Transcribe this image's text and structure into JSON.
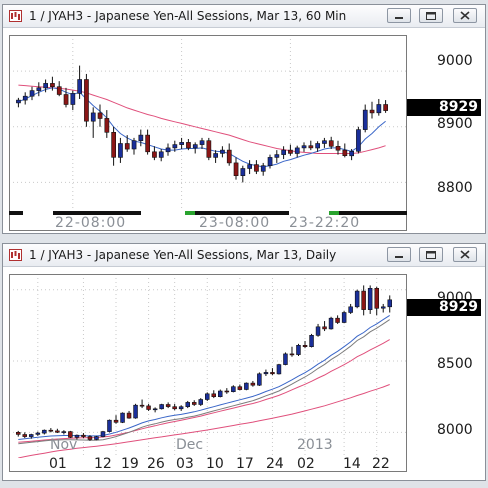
{
  "colors": {
    "up": "#1a2f9a",
    "down": "#8a1616",
    "fast_ma": "#3a66c8",
    "slow_ma": "#e0507c",
    "daily_ma": "#7c7c7c",
    "session_active": "#111111",
    "session_open": "#29a32e"
  },
  "icons": {
    "app": "chart-window-icon",
    "minimize": "minimize-icon",
    "restore": "restore-icon",
    "close": "close-icon"
  },
  "windows": [
    {
      "id": "hourly",
      "title": "1 / JYAH3 - Japanese Yen-All Sessions, Mar 13, 60 Min",
      "last_price": "8929",
      "price_axis": {
        "labels": [
          "9000",
          "8900",
          "8800"
        ],
        "min": 8745,
        "max": 9065
      },
      "date_axis": [
        "22-08:00",
        "23-08:00",
        "23-22:20"
      ],
      "chart_data": {
        "type": "candlestick",
        "ylim": [
          8745,
          9065
        ],
        "candles": [
          [
            8943,
            8952,
            8935,
            8948
          ],
          [
            8948,
            8962,
            8940,
            8955
          ],
          [
            8955,
            8972,
            8948,
            8965
          ],
          [
            8965,
            8980,
            8955,
            8970
          ],
          [
            8970,
            8985,
            8962,
            8978
          ],
          [
            8978,
            8990,
            8965,
            8972
          ],
          [
            8972,
            8982,
            8955,
            8958
          ],
          [
            8958,
            8970,
            8935,
            8940
          ],
          [
            8940,
            8965,
            8930,
            8960
          ],
          [
            8960,
            9010,
            8950,
            8985
          ],
          [
            8985,
            8995,
            8900,
            8910
          ],
          [
            8910,
            8935,
            8880,
            8925
          ],
          [
            8925,
            8940,
            8900,
            8915
          ],
          [
            8915,
            8930,
            8880,
            8890
          ],
          [
            8890,
            8900,
            8830,
            8845
          ],
          [
            8845,
            8880,
            8835,
            8870
          ],
          [
            8870,
            8885,
            8855,
            8860
          ],
          [
            8860,
            8880,
            8850,
            8875
          ],
          [
            8875,
            8895,
            8865,
            8885
          ],
          [
            8885,
            8895,
            8850,
            8855
          ],
          [
            8855,
            8865,
            8840,
            8845
          ],
          [
            8845,
            8860,
            8838,
            8855
          ],
          [
            8855,
            8870,
            8848,
            8862
          ],
          [
            8862,
            8875,
            8855,
            8868
          ],
          [
            8868,
            8880,
            8860,
            8872
          ],
          [
            8872,
            8878,
            8858,
            8862
          ],
          [
            8862,
            8872,
            8852,
            8868
          ],
          [
            8868,
            8880,
            8860,
            8875
          ],
          [
            8875,
            8880,
            8840,
            8845
          ],
          [
            8845,
            8858,
            8835,
            8852
          ],
          [
            8852,
            8865,
            8845,
            8858
          ],
          [
            8858,
            8870,
            8830,
            8835
          ],
          [
            8835,
            8845,
            8805,
            8812
          ],
          [
            8812,
            8830,
            8800,
            8825
          ],
          [
            8825,
            8840,
            8815,
            8832
          ],
          [
            8832,
            8840,
            8815,
            8820
          ],
          [
            8820,
            8835,
            8812,
            8830
          ],
          [
            8830,
            8850,
            8825,
            8845
          ],
          [
            8845,
            8858,
            8835,
            8850
          ],
          [
            8850,
            8865,
            8842,
            8858
          ],
          [
            8858,
            8868,
            8848,
            8852
          ],
          [
            8852,
            8866,
            8845,
            8862
          ],
          [
            8862,
            8872,
            8855,
            8866
          ],
          [
            8866,
            8875,
            8858,
            8862
          ],
          [
            8862,
            8874,
            8855,
            8870
          ],
          [
            8870,
            8880,
            8862,
            8875
          ],
          [
            8875,
            8882,
            8860,
            8865
          ],
          [
            8865,
            8875,
            8850,
            8858
          ],
          [
            8858,
            8870,
            8845,
            8848
          ],
          [
            8848,
            8860,
            8840,
            8856
          ],
          [
            8856,
            8900,
            8852,
            8895
          ],
          [
            8895,
            8940,
            8890,
            8930
          ],
          [
            8930,
            8945,
            8915,
            8925
          ],
          [
            8925,
            8950,
            8920,
            8940
          ],
          [
            8940,
            8948,
            8925,
            8929
          ]
        ],
        "fast_ma": [
          8945,
          8950,
          8956,
          8962,
          8967,
          8970,
          8968,
          8962,
          8958,
          8962,
          8950,
          8938,
          8928,
          8916,
          8900,
          8888,
          8880,
          8874,
          8872,
          8868,
          8864,
          8860,
          8858,
          8858,
          8860,
          8861,
          8861,
          8862,
          8859,
          8856,
          8855,
          8852,
          8845,
          8838,
          8833,
          8830,
          8828,
          8830,
          8833,
          8838,
          8841,
          8845,
          8849,
          8852,
          8856,
          8860,
          8862,
          8862,
          8859,
          8856,
          8864,
          8878,
          8888,
          8900,
          8910
        ],
        "slow_ma": [
          8975,
          8974,
          8973,
          8972,
          8971,
          8970,
          8969,
          8968,
          8966,
          8964,
          8961,
          8957,
          8953,
          8949,
          8944,
          8939,
          8934,
          8930,
          8926,
          8922,
          8919,
          8915,
          8912,
          8909,
          8906,
          8903,
          8900,
          8897,
          8894,
          8891,
          8888,
          8885,
          8881,
          8877,
          8873,
          8870,
          8867,
          8864,
          8861,
          8859,
          8857,
          8855,
          8854,
          8853,
          8852,
          8852,
          8852,
          8852,
          8852,
          8852,
          8853,
          8856,
          8859,
          8862,
          8866
        ]
      }
    },
    {
      "id": "daily",
      "title": "1 / JYAH3 - Japanese Yen-All Sessions, Mar 13, Daily",
      "last_price": "8929",
      "price_axis": {
        "labels": [
          "9000",
          "8500",
          "8000"
        ],
        "min": 7820,
        "max": 9110
      },
      "date_axis": {
        "months": [
          "Nov",
          "Dec",
          "2013"
        ],
        "days": [
          "01",
          "12",
          "19",
          "26",
          "03",
          "10",
          "17",
          "24",
          "02",
          "14",
          "22"
        ]
      },
      "chart_data": {
        "type": "candlestick",
        "ylim": [
          7820,
          9110
        ],
        "candles": [
          [
            8000,
            8010,
            7970,
            7985
          ],
          [
            7985,
            8000,
            7960,
            7970
          ],
          [
            7970,
            7990,
            7955,
            7985
          ],
          [
            7985,
            8005,
            7975,
            7995
          ],
          [
            7995,
            8020,
            7985,
            8015
          ],
          [
            8015,
            8030,
            8000,
            8010
          ],
          [
            8010,
            8025,
            7995,
            8000
          ],
          [
            8000,
            8015,
            7985,
            8005
          ],
          [
            8005,
            8010,
            7960,
            7965
          ],
          [
            7965,
            7985,
            7950,
            7980
          ],
          [
            7980,
            7995,
            7960,
            7970
          ],
          [
            7970,
            7980,
            7940,
            7950
          ],
          [
            7950,
            7975,
            7945,
            7970
          ],
          [
            7970,
            8010,
            7965,
            8005
          ],
          [
            8005,
            8090,
            8000,
            8085
          ],
          [
            8085,
            8120,
            8060,
            8070
          ],
          [
            8070,
            8140,
            8065,
            8135
          ],
          [
            8135,
            8150,
            8095,
            8100
          ],
          [
            8100,
            8200,
            8095,
            8190
          ],
          [
            8190,
            8230,
            8170,
            8185
          ],
          [
            8185,
            8200,
            8150,
            8160
          ],
          [
            8160,
            8175,
            8140,
            8165
          ],
          [
            8165,
            8200,
            8160,
            8195
          ],
          [
            8195,
            8210,
            8170,
            8180
          ],
          [
            8180,
            8200,
            8155,
            8165
          ],
          [
            8165,
            8190,
            8150,
            8180
          ],
          [
            8180,
            8220,
            8170,
            8210
          ],
          [
            8210,
            8225,
            8185,
            8195
          ],
          [
            8195,
            8240,
            8185,
            8230
          ],
          [
            8230,
            8280,
            8220,
            8270
          ],
          [
            8270,
            8295,
            8240,
            8250
          ],
          [
            8250,
            8300,
            8245,
            8290
          ],
          [
            8290,
            8310,
            8270,
            8285
          ],
          [
            8285,
            8330,
            8280,
            8320
          ],
          [
            8320,
            8335,
            8295,
            8300
          ],
          [
            8300,
            8350,
            8295,
            8345
          ],
          [
            8345,
            8360,
            8320,
            8330
          ],
          [
            8330,
            8420,
            8325,
            8410
          ],
          [
            8410,
            8440,
            8395,
            8420
          ],
          [
            8420,
            8450,
            8400,
            8410
          ],
          [
            8410,
            8480,
            8405,
            8475
          ],
          [
            8475,
            8560,
            8470,
            8550
          ],
          [
            8550,
            8600,
            8530,
            8545
          ],
          [
            8545,
            8620,
            8535,
            8610
          ],
          [
            8610,
            8640,
            8590,
            8600
          ],
          [
            8600,
            8690,
            8595,
            8680
          ],
          [
            8680,
            8760,
            8670,
            8740
          ],
          [
            8740,
            8780,
            8710,
            8725
          ],
          [
            8725,
            8810,
            8720,
            8800
          ],
          [
            8800,
            8820,
            8760,
            8770
          ],
          [
            8770,
            8850,
            8765,
            8840
          ],
          [
            8840,
            8900,
            8830,
            8880
          ],
          [
            8880,
            9000,
            8870,
            8990
          ],
          [
            8990,
            9030,
            8820,
            8860
          ],
          [
            8860,
            9030,
            8830,
            9010
          ],
          [
            9010,
            9020,
            8820,
            8870
          ],
          [
            8870,
            8900,
            8840,
            8880
          ],
          [
            8880,
            8960,
            8840,
            8929
          ]
        ],
        "fast_ma": [
          7950,
          7955,
          7960,
          7965,
          7970,
          7974,
          7976,
          7978,
          7978,
          7977,
          7976,
          7975,
          7975,
          7978,
          7988,
          8000,
          8015,
          8030,
          8048,
          8066,
          8080,
          8090,
          8102,
          8112,
          8120,
          8126,
          8135,
          8144,
          8155,
          8168,
          8180,
          8192,
          8204,
          8216,
          8228,
          8240,
          8252,
          8268,
          8286,
          8302,
          8320,
          8344,
          8368,
          8394,
          8418,
          8446,
          8478,
          8506,
          8540,
          8568,
          8600,
          8634,
          8674,
          8700,
          8735,
          8760,
          8790,
          8820
        ],
        "slow_ma": [
          7930,
          7934,
          7938,
          7942,
          7946,
          7950,
          7953,
          7956,
          7958,
          7960,
          7962,
          7963,
          7964,
          7967,
          7973,
          7981,
          7991,
          8001,
          8013,
          8025,
          8036,
          8046,
          8057,
          8067,
          8076,
          8084,
          8094,
          8104,
          8114,
          8126,
          8137,
          8148,
          8159,
          8170,
          8181,
          8192,
          8202,
          8215,
          8230,
          8244,
          8259,
          8278,
          8298,
          8318,
          8337,
          8358,
          8381,
          8402,
          8428,
          8450,
          8474,
          8500,
          8530,
          8552,
          8578,
          8600,
          8624,
          8650
        ],
        "lower_ma": [
          7820,
          7830,
          7838,
          7846,
          7854,
          7862,
          7870,
          7876,
          7882,
          7888,
          7893,
          7898,
          7903,
          7908,
          7914,
          7920,
          7927,
          7934,
          7941,
          7948,
          7955,
          7962,
          7968,
          7975,
          7982,
          7988,
          7995,
          8002,
          8009,
          8016,
          8024,
          8032,
          8040,
          8048,
          8056,
          8064,
          8072,
          8081,
          8090,
          8099,
          8108,
          8118,
          8128,
          8139,
          8150,
          8162,
          8174,
          8186,
          8200,
          8214,
          8228,
          8242,
          8258,
          8272,
          8288,
          8302,
          8318,
          8335
        ]
      }
    }
  ]
}
